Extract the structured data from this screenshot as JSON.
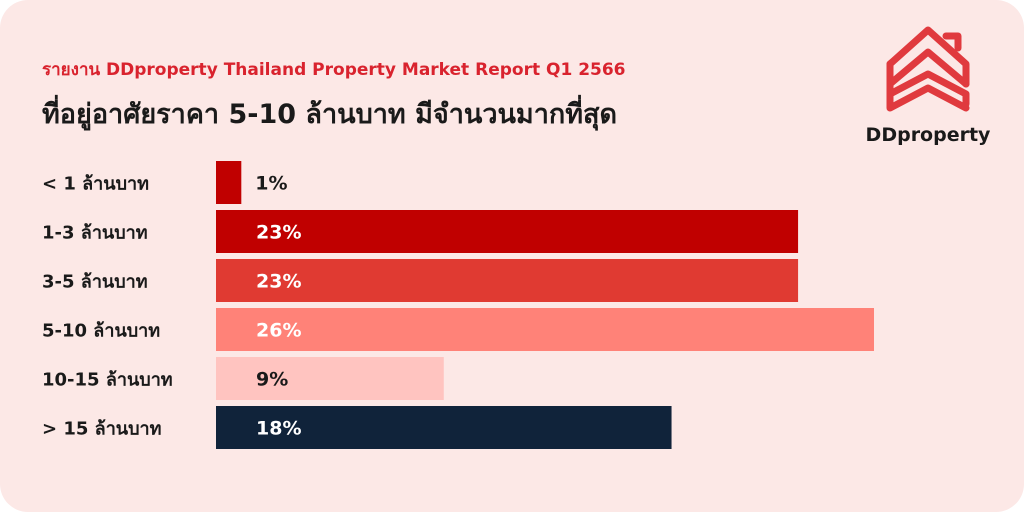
{
  "header": {
    "subtitle": "รายงาน DDproperty Thailand Property Market Report Q1 2566",
    "title": "ที่อยู่อาศัยราคา 5-10 ล้านบาท มีจำนวนมากที่สุด"
  },
  "brand": {
    "name": "DDproperty",
    "logo_icon": "house-outline-icon",
    "color": "#e03a3e"
  },
  "chart_data": {
    "type": "bar",
    "orientation": "horizontal",
    "unit": "%",
    "categories": [
      "< 1 ล้านบาท",
      "1-3 ล้านบาท",
      "3-5 ล้านบาท",
      "5-10 ล้านบาท",
      "10-15 ล้านบาท",
      "> 15 ล้านบาท"
    ],
    "values": [
      1,
      23,
      23,
      26,
      9,
      18
    ],
    "value_labels": [
      "1%",
      "23%",
      "23%",
      "26%",
      "9%",
      "18%"
    ],
    "colors": [
      "#c00000",
      "#c00000",
      "#e03a32",
      "#ff8278",
      "#ffc4c0",
      "#10233a"
    ],
    "label_colors": [
      "#1a1a1a",
      "#ffffff",
      "#ffffff",
      "#ffffff",
      "#1a1a1a",
      "#ffffff"
    ],
    "xlim": [
      0,
      26
    ],
    "grid": false,
    "legend": "none"
  }
}
